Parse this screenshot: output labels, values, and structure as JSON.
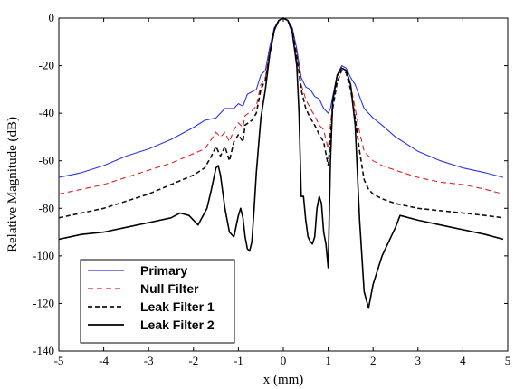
{
  "chart_data": {
    "type": "line",
    "xlabel": "x (mm)",
    "ylabel": "Relative Magnitude (dB)",
    "xlim": [
      -5,
      5
    ],
    "ylim": [
      -140,
      0
    ],
    "xticks": [
      -5,
      -4,
      -3,
      -2,
      -1,
      0,
      1,
      2,
      3,
      4,
      5
    ],
    "yticks": [
      0,
      -20,
      -40,
      -60,
      -80,
      -100,
      -120,
      -140
    ],
    "grid": false,
    "legend_position": "bottom-left",
    "series": [
      {
        "name": "Primary",
        "color": "#2b35e8",
        "dash": "solid",
        "x": [
          -5,
          -4.5,
          -4,
          -3.5,
          -3,
          -2.5,
          -2,
          -1.75,
          -1.5,
          -1.3,
          -1.1,
          -1.0,
          -0.9,
          -0.8,
          -0.6,
          -0.5,
          -0.4,
          -0.3,
          -0.2,
          -0.1,
          0,
          0.1,
          0.2,
          0.3,
          0.4,
          0.5,
          0.6,
          0.7,
          0.8,
          0.9,
          1.0,
          1.05,
          1.1,
          1.2,
          1.3,
          1.4,
          1.5,
          1.6,
          1.7,
          1.8,
          1.9,
          2.0,
          2.2,
          2.5,
          3,
          3.5,
          4,
          4.5,
          4.9
        ],
        "y": [
          -67,
          -65,
          -62,
          -58,
          -55,
          -51,
          -46,
          -43,
          -42,
          -38,
          -38,
          -36,
          -37,
          -32,
          -30,
          -24,
          -22,
          -12,
          -4,
          -1,
          0,
          -1,
          -4,
          -13,
          -25,
          -29,
          -30,
          -33,
          -34,
          -38,
          -40,
          -38,
          -33,
          -24,
          -20,
          -21,
          -25,
          -28,
          -33,
          -38,
          -40,
          -42,
          -45,
          -50,
          -56,
          -60,
          -63,
          -65,
          -67
        ]
      },
      {
        "name": "Null Filter",
        "color": "#e02020",
        "dash": "6,4",
        "x": [
          -5,
          -4.5,
          -4,
          -3.5,
          -3,
          -2.5,
          -2,
          -1.75,
          -1.6,
          -1.5,
          -1.4,
          -1.3,
          -1.2,
          -1.1,
          -1.0,
          -0.9,
          -0.85,
          -0.7,
          -0.6,
          -0.5,
          -0.4,
          -0.3,
          -0.2,
          -0.1,
          0,
          0.1,
          0.2,
          0.3,
          0.4,
          0.5,
          0.6,
          0.7,
          0.8,
          0.9,
          1.0,
          1.05,
          1.1,
          1.2,
          1.3,
          1.4,
          1.5,
          1.6,
          1.7,
          1.8,
          1.9,
          2.0,
          2.2,
          2.5,
          3,
          3.5,
          4,
          4.5,
          4.9
        ],
        "y": [
          -74,
          -72,
          -70,
          -67,
          -64,
          -61,
          -57,
          -55,
          -51,
          -48,
          -50,
          -48,
          -52,
          -47,
          -44,
          -46,
          -41,
          -39,
          -37,
          -28,
          -25,
          -14,
          -5,
          -1,
          0,
          -1,
          -5,
          -15,
          -28,
          -34,
          -38,
          -41,
          -45,
          -47,
          -55,
          -45,
          -35,
          -25,
          -21,
          -22,
          -28,
          -38,
          -48,
          -56,
          -58,
          -60,
          -62,
          -64,
          -67,
          -69,
          -70,
          -72,
          -74
        ]
      },
      {
        "name": "Leak Filter 1",
        "color": "#111111",
        "dash": "5,3",
        "x": [
          -5,
          -4.5,
          -4,
          -3.5,
          -3,
          -2.5,
          -2,
          -1.75,
          -1.6,
          -1.5,
          -1.4,
          -1.3,
          -1.2,
          -1.1,
          -1.0,
          -0.9,
          -0.85,
          -0.7,
          -0.6,
          -0.5,
          -0.4,
          -0.3,
          -0.2,
          -0.1,
          0,
          0.1,
          0.2,
          0.3,
          0.4,
          0.5,
          0.6,
          0.7,
          0.8,
          0.9,
          1.0,
          1.05,
          1.1,
          1.2,
          1.3,
          1.4,
          1.5,
          1.6,
          1.7,
          1.8,
          1.9,
          2.0,
          2.2,
          2.5,
          3,
          3.5,
          4,
          4.5,
          4.9
        ],
        "y": [
          -84,
          -82,
          -80,
          -77,
          -74,
          -70,
          -66,
          -63,
          -58,
          -54,
          -58,
          -54,
          -60,
          -52,
          -49,
          -52,
          -45,
          -43,
          -40,
          -30,
          -26,
          -15,
          -5,
          -1,
          0,
          -1,
          -5,
          -16,
          -30,
          -38,
          -42,
          -45,
          -49,
          -52,
          -62,
          -50,
          -38,
          -27,
          -22,
          -23,
          -30,
          -42,
          -56,
          -68,
          -72,
          -74,
          -76,
          -78,
          -80,
          -81,
          -82,
          -83,
          -84
        ]
      },
      {
        "name": "Leak Filter 2",
        "color": "#000000",
        "dash": "solid",
        "x": [
          -5,
          -4.5,
          -4,
          -3.5,
          -3,
          -2.5,
          -2.3,
          -2.1,
          -1.9,
          -1.7,
          -1.6,
          -1.5,
          -1.45,
          -1.4,
          -1.3,
          -1.2,
          -1.1,
          -1.0,
          -0.95,
          -0.9,
          -0.85,
          -0.8,
          -0.75,
          -0.7,
          -0.65,
          -0.6,
          -0.5,
          -0.4,
          -0.3,
          -0.2,
          -0.1,
          0,
          0.1,
          0.2,
          0.3,
          0.35,
          0.4,
          0.45,
          0.5,
          0.55,
          0.6,
          0.65,
          0.7,
          0.75,
          0.8,
          0.85,
          0.9,
          0.95,
          1.0,
          1.05,
          1.1,
          1.2,
          1.3,
          1.4,
          1.5,
          1.6,
          1.7,
          1.8,
          1.9,
          2.0,
          2.2,
          2.4,
          2.5,
          2.6,
          3,
          3.5,
          4,
          4.5,
          4.9
        ],
        "y": [
          -93,
          -91,
          -90,
          -88,
          -86,
          -84,
          -82,
          -83,
          -87,
          -80,
          -72,
          -63,
          -62,
          -66,
          -80,
          -90,
          -92,
          -83,
          -80,
          -84,
          -92,
          -97,
          -98,
          -94,
          -80,
          -65,
          -42,
          -30,
          -15,
          -5,
          -1,
          0,
          -1,
          -6,
          -20,
          -40,
          -75,
          -75,
          -85,
          -92,
          -94,
          -95,
          -92,
          -80,
          -75,
          -78,
          -90,
          -95,
          -105,
          -60,
          -35,
          -24,
          -21,
          -22,
          -28,
          -45,
          -85,
          -115,
          -122,
          -112,
          -100,
          -92,
          -88,
          -83,
          -85,
          -87,
          -89,
          -91,
          -93
        ]
      }
    ]
  }
}
